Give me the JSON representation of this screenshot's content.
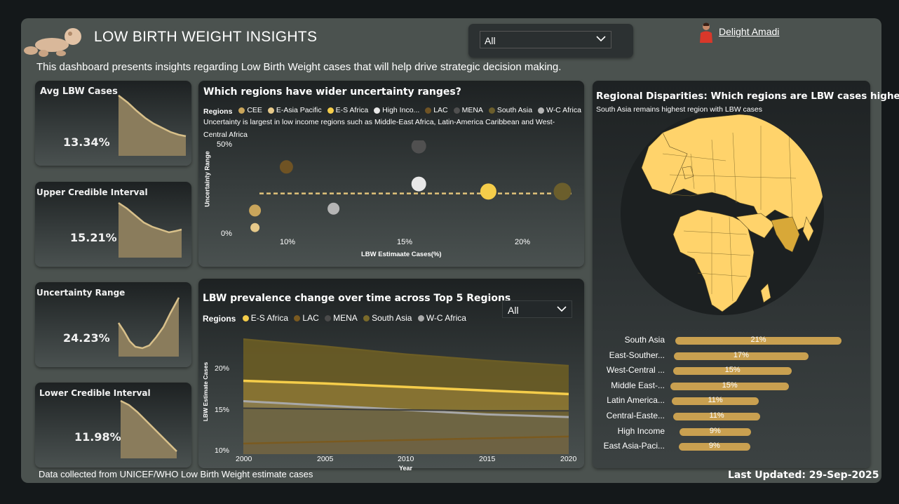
{
  "header": {
    "title": "LOW BIRTH WEIGHT INSIGHTS",
    "subtitle": "This dashboard presents insights regarding Low Birth Weight cases that will help drive strategic decision making.",
    "filter_value": "All",
    "user_name": "Delight Amadi"
  },
  "kpis": [
    {
      "title": "Avg LBW Cases",
      "value": "13.34%"
    },
    {
      "title": "Upper Credible Interval",
      "value": "15.21%"
    },
    {
      "title": "Uncertainty Range",
      "value": "24.23%"
    },
    {
      "title": "Lower Credible Interval",
      "value": "11.98%"
    }
  ],
  "scatter": {
    "title": "Which regions have wider uncertainty ranges?",
    "legend_label": "Regions",
    "legend": [
      {
        "name": "CEE",
        "color": "#c9a55b"
      },
      {
        "name": "E-Asia Pacific",
        "color": "#e6c98a"
      },
      {
        "name": "E-S Africa",
        "color": "#f5cd4a"
      },
      {
        "name": "High Inco...",
        "color": "#e8e8e8"
      },
      {
        "name": "LAC",
        "color": "#6f5324"
      },
      {
        "name": "MENA",
        "color": "#505050"
      },
      {
        "name": "South Asia",
        "color": "#6b5e2c"
      },
      {
        "name": "W-C Africa",
        "color": "#b5b5b5"
      }
    ],
    "note": "Uncertainty is largest in low income regions such as Middle-East Africa, Latin-America Caribbean and West-Central Africa",
    "ylabel": "Uncertainty Range",
    "xlabel": "LBW Estimaate Cases(%)",
    "y_ticks": [
      "50%",
      "0%"
    ],
    "x_ticks": [
      "10%",
      "15%",
      "20%"
    ]
  },
  "area": {
    "title": "LBW prevalence change over time across Top 5 Regions",
    "legend_label": "Regions",
    "legend": [
      {
        "name": "E-S Africa",
        "color": "#f5cd4a"
      },
      {
        "name": "LAC",
        "color": "#7a5a20"
      },
      {
        "name": "MENA",
        "color": "#4a4a4a"
      },
      {
        "name": "South Asia",
        "color": "#7a6a2a"
      },
      {
        "name": "W-C Africa",
        "color": "#aaaaaa"
      }
    ],
    "filter_value": "All",
    "ylabel": "LBW Estimate Cases",
    "xlabel": "Year",
    "y_ticks": [
      "20%",
      "15%",
      "10%"
    ],
    "x_ticks": [
      "2000",
      "2005",
      "2010",
      "2015",
      "2020"
    ]
  },
  "map_panel": {
    "title": "Regional Disparities: Which regions are LBW cases highest?",
    "subtitle": "South Asia remains highest region with LBW cases"
  },
  "footer": {
    "source": "Data collected from UNICEF/WHO Low Birth Weight estimate cases",
    "updated": "Last Updated: 29-Sep-2025"
  },
  "chart_data": [
    {
      "type": "scatter",
      "title": "Which regions have wider uncertainty ranges?",
      "xlabel": "LBW Estimaate Cases(%)",
      "ylabel": "Uncertainty Range",
      "xlim": [
        7.5,
        22.5
      ],
      "ylim": [
        0,
        50
      ],
      "reference_line_y": 22,
      "series": [
        {
          "name": "CEE",
          "x": 8.3,
          "y": 13,
          "color": "#c9a55b",
          "size": 8
        },
        {
          "name": "E-Asia Pacific",
          "x": 8.3,
          "y": 4,
          "color": "#e6c98a",
          "size": 6
        },
        {
          "name": "E-S Africa",
          "x": 18.7,
          "y": 23,
          "color": "#f5cd4a",
          "size": 11
        },
        {
          "name": "High Inco...",
          "x": 15.6,
          "y": 27,
          "color": "#e8e8e8",
          "size": 10
        },
        {
          "name": "LAC",
          "x": 9.7,
          "y": 36,
          "color": "#6f5324",
          "size": 9
        },
        {
          "name": "MENA",
          "x": 15.6,
          "y": 47,
          "color": "#505050",
          "size": 10
        },
        {
          "name": "South Asia",
          "x": 22,
          "y": 23,
          "color": "#6b5e2c",
          "size": 12
        },
        {
          "name": "W-C Africa",
          "x": 11.8,
          "y": 14,
          "color": "#b5b5b5",
          "size": 8
        }
      ]
    },
    {
      "type": "area",
      "title": "LBW prevalence change over time across Top 5 Regions",
      "xlabel": "Year",
      "ylabel": "LBW Estimate Cases",
      "x": [
        2000,
        2005,
        2010,
        2015,
        2020
      ],
      "ylim": [
        10,
        23.5
      ],
      "series": [
        {
          "name": "South Asia",
          "color": "#7a6a2a",
          "values": [
            23.0,
            22.2,
            21.3,
            20.6,
            20.0
          ]
        },
        {
          "name": "E-S Africa",
          "color": "#f5cd4a",
          "values": [
            18.3,
            18.0,
            17.6,
            17.2,
            16.8
          ]
        },
        {
          "name": "W-C Africa",
          "color": "#aaaaaa",
          "values": [
            16.0,
            15.5,
            15.0,
            14.5,
            14.2
          ]
        },
        {
          "name": "MENA",
          "color": "#4a4a4a",
          "values": [
            15.2,
            15.1,
            15.0,
            14.9,
            14.9
          ]
        },
        {
          "name": "LAC",
          "color": "#7a5a20",
          "values": [
            11.2,
            11.4,
            11.6,
            11.8,
            12.0
          ]
        }
      ]
    },
    {
      "type": "bar",
      "title": "Regional Disparities: Which regions are LBW cases highest?",
      "categories": [
        "South Asia",
        "East-Souther...",
        "West-Central ...",
        "Middle East-...",
        "Latin America...",
        "Central-Easte...",
        "High Income",
        "East Asia-Paci..."
      ],
      "values": [
        21,
        17,
        15,
        15,
        11,
        11,
        9,
        9
      ],
      "labels": [
        "21%",
        "17%",
        "15%",
        "15%",
        "11%",
        "11%",
        "9%",
        "9%"
      ]
    }
  ]
}
